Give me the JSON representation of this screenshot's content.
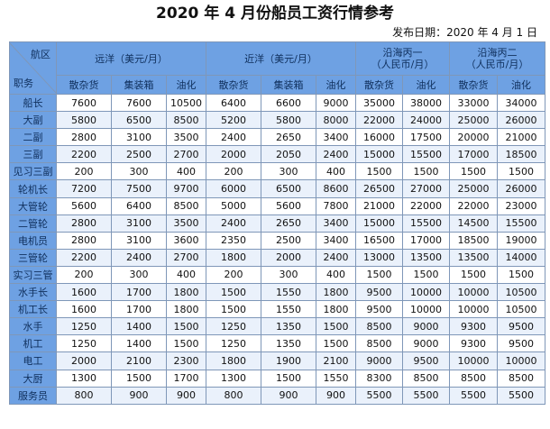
{
  "title": "2020 年 4 月份船员工资行情参考",
  "publish_date": "发布日期：2020 年 4 月 1 日",
  "corner": {
    "top": "航区",
    "bottom": "职务"
  },
  "regions": [
    "远洋（美元/月）",
    "近洋（美元/月）",
    "沿海丙一（人民币/月）",
    "沿海丙二（人民币/月）"
  ],
  "region_lines": [
    [
      "远洋（美元/月）"
    ],
    [
      "近洋（美元/月）"
    ],
    [
      "沿海丙一",
      "（人民币/月）"
    ],
    [
      "沿海丙二",
      "（人民币/月）"
    ]
  ],
  "subheaders": [
    [
      "散杂货",
      "集装箱",
      "油化"
    ],
    [
      "散杂货",
      "集装箱",
      "油化"
    ],
    [
      "散杂货",
      "油化"
    ],
    [
      "散杂货",
      "油化"
    ]
  ],
  "rows": [
    {
      "role": "船长",
      "values": [
        "7600",
        "7600",
        "10500",
        "6400",
        "6600",
        "9000",
        "35000",
        "38000",
        "33000",
        "34000"
      ]
    },
    {
      "role": "大副",
      "values": [
        "5800",
        "6500",
        "8500",
        "5200",
        "5800",
        "8000",
        "22000",
        "24000",
        "25000",
        "26000"
      ]
    },
    {
      "role": "二副",
      "values": [
        "2800",
        "3100",
        "3500",
        "2400",
        "2650",
        "3400",
        "16000",
        "17500",
        "20000",
        "21000"
      ]
    },
    {
      "role": "三副",
      "values": [
        "2200",
        "2500",
        "2700",
        "2000",
        "2050",
        "2400",
        "15000",
        "15500",
        "17000",
        "18500"
      ]
    },
    {
      "role": "见习三副",
      "values": [
        "200",
        "300",
        "400",
        "200",
        "300",
        "400",
        "1500",
        "1500",
        "1500",
        "1500"
      ]
    },
    {
      "role": "轮机长",
      "values": [
        "7200",
        "7500",
        "9700",
        "6000",
        "6500",
        "8600",
        "26500",
        "27000",
        "25000",
        "26000"
      ]
    },
    {
      "role": "大管轮",
      "values": [
        "5600",
        "6400",
        "8500",
        "5000",
        "5600",
        "7800",
        "21000",
        "22000",
        "22000",
        "23000"
      ]
    },
    {
      "role": "二管轮",
      "values": [
        "2800",
        "3100",
        "3500",
        "2400",
        "2650",
        "3400",
        "15000",
        "15500",
        "14500",
        "15500"
      ]
    },
    {
      "role": "电机员",
      "values": [
        "2800",
        "3100",
        "3600",
        "2350",
        "2500",
        "3400",
        "16500",
        "17000",
        "18500",
        "19000"
      ]
    },
    {
      "role": "三管轮",
      "values": [
        "2200",
        "2400",
        "2700",
        "1800",
        "2000",
        "2400",
        "13000",
        "13500",
        "13500",
        "14000"
      ]
    },
    {
      "role": "实习三管",
      "values": [
        "200",
        "300",
        "400",
        "200",
        "300",
        "400",
        "1500",
        "1500",
        "1500",
        "1500"
      ]
    },
    {
      "role": "水手长",
      "values": [
        "1600",
        "1700",
        "1800",
        "1500",
        "1550",
        "1800",
        "9500",
        "10000",
        "10000",
        "10500"
      ]
    },
    {
      "role": "机工长",
      "values": [
        "1600",
        "1700",
        "1800",
        "1500",
        "1550",
        "1800",
        "9500",
        "10000",
        "10000",
        "10500"
      ]
    },
    {
      "role": "水手",
      "values": [
        "1250",
        "1400",
        "1500",
        "1250",
        "1350",
        "1500",
        "8500",
        "9000",
        "9300",
        "9500"
      ]
    },
    {
      "role": "机工",
      "values": [
        "1250",
        "1400",
        "1500",
        "1250",
        "1350",
        "1500",
        "8500",
        "9000",
        "9300",
        "9500"
      ]
    },
    {
      "role": "电工",
      "values": [
        "2000",
        "2100",
        "2300",
        "1800",
        "1900",
        "2100",
        "9000",
        "9500",
        "10000",
        "10000"
      ]
    },
    {
      "role": "大厨",
      "values": [
        "1300",
        "1500",
        "1700",
        "1300",
        "1500",
        "1550",
        "8300",
        "8500",
        "8500",
        "8500"
      ]
    },
    {
      "role": "服务员",
      "values": [
        "800",
        "900",
        "900",
        "800",
        "900",
        "900",
        "5500",
        "5500",
        "5500",
        "5500"
      ]
    }
  ]
}
